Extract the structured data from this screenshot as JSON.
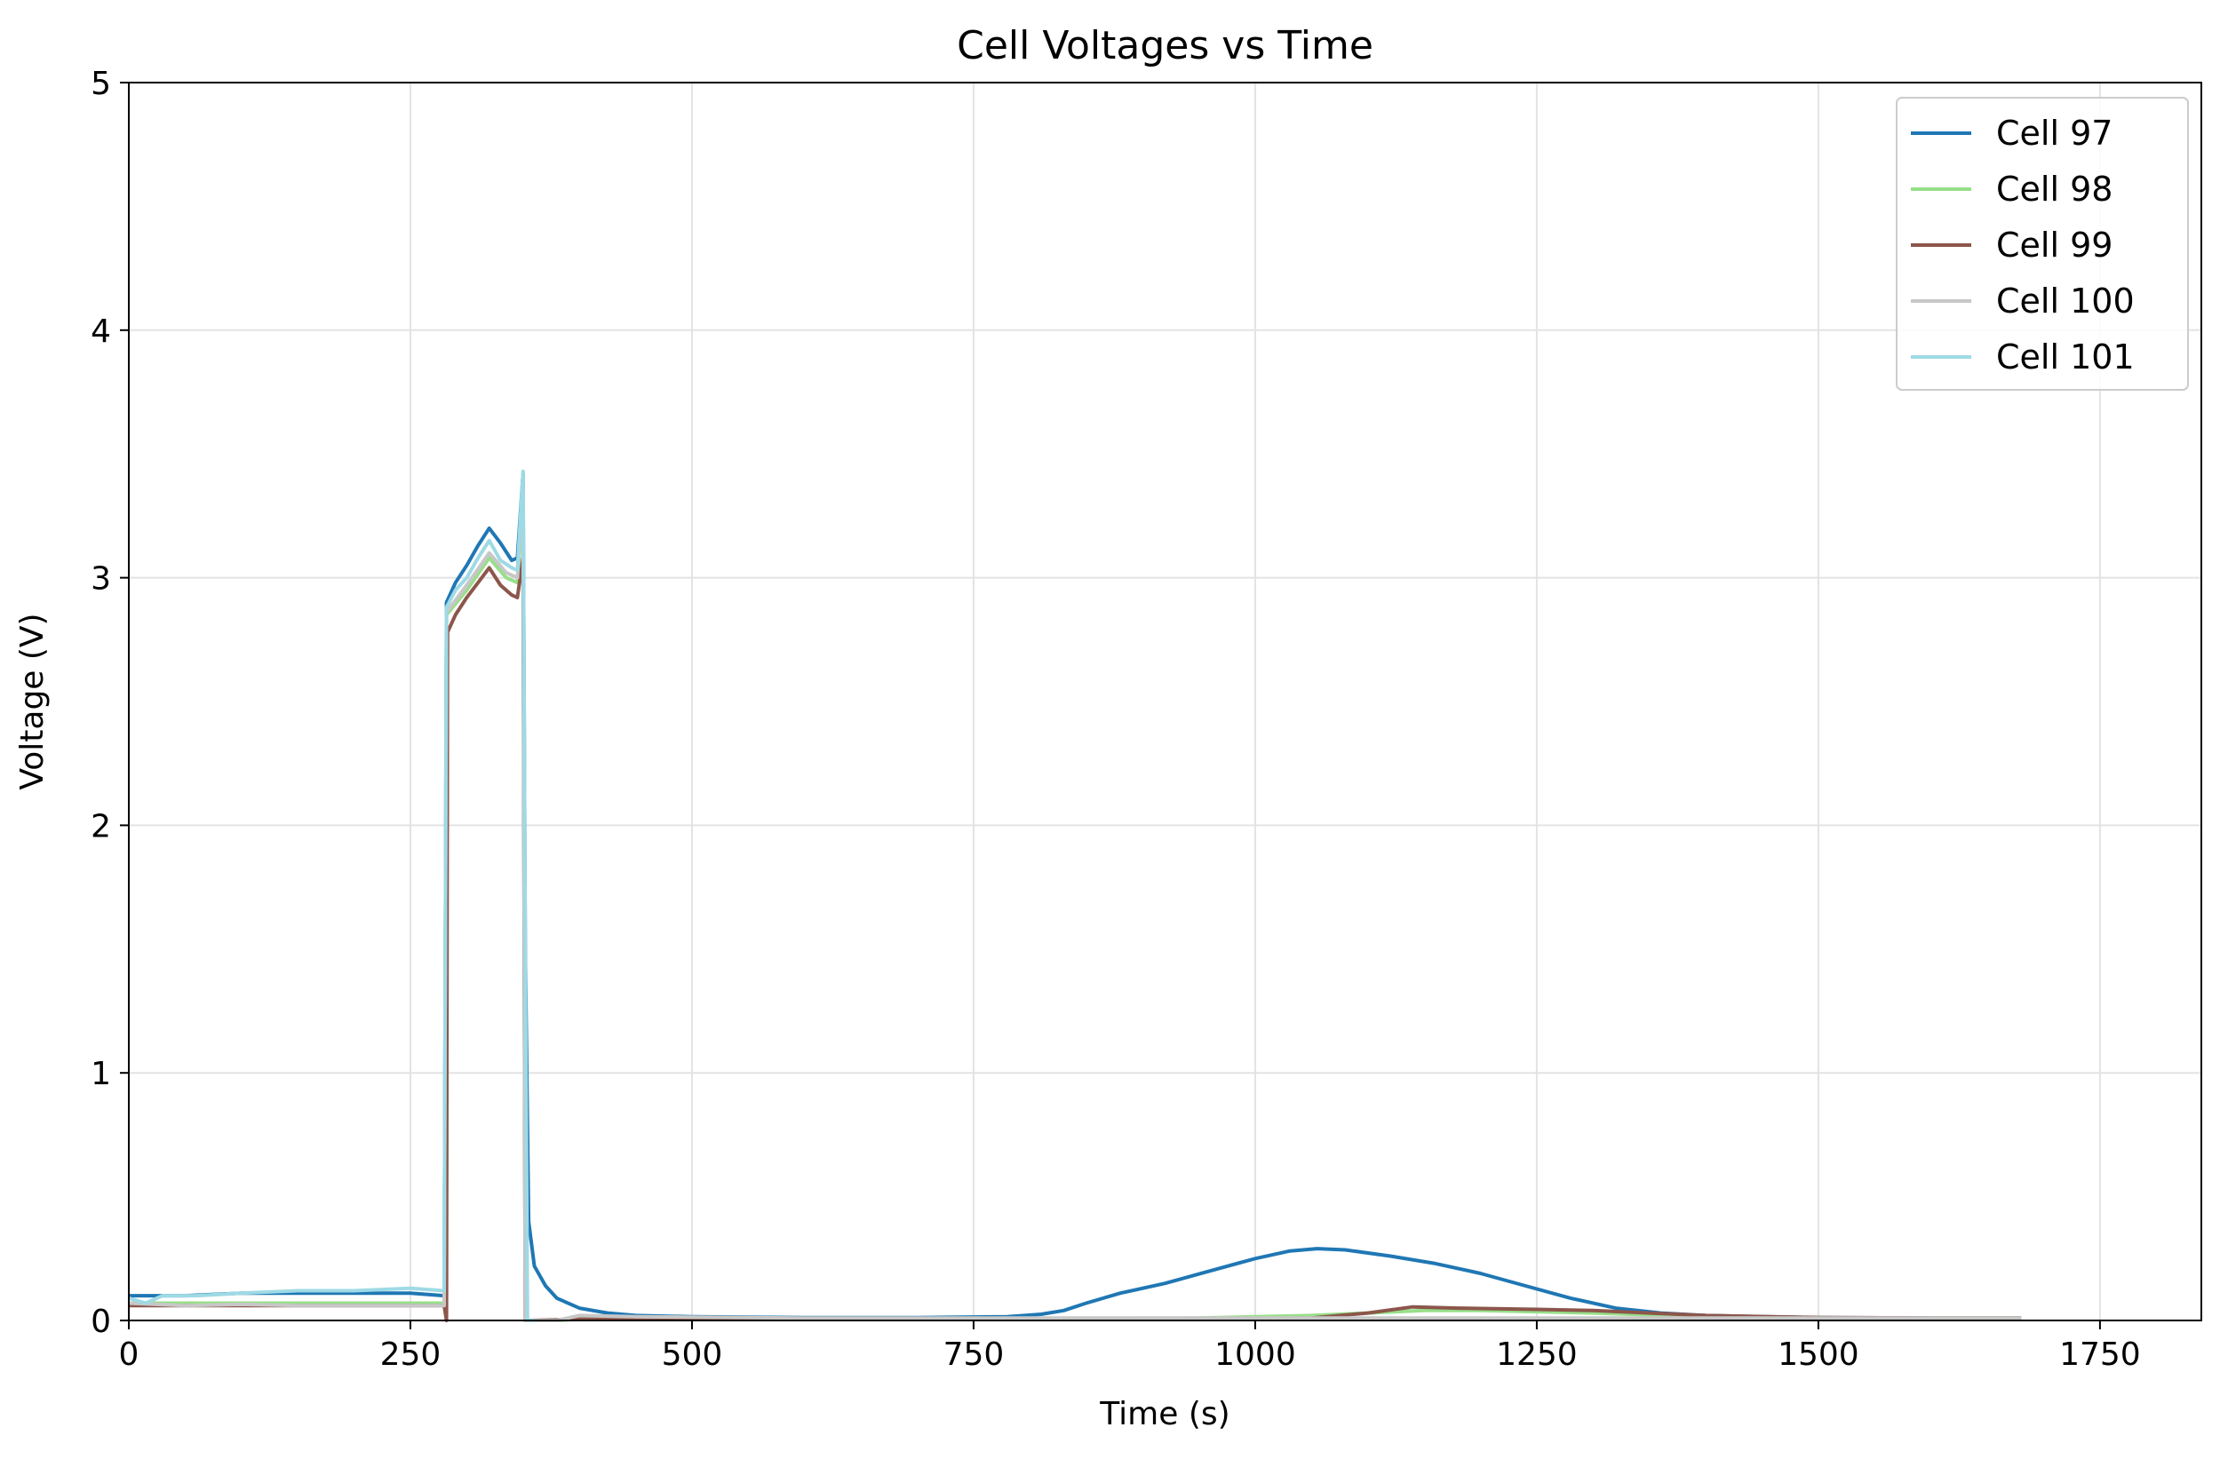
{
  "chart_data": {
    "type": "line",
    "title": "Cell Voltages vs Time",
    "xlabel": "Time (s)",
    "ylabel": "Voltage (V)",
    "xlim": [
      0,
      1840
    ],
    "ylim": [
      0,
      5
    ],
    "xticks": [
      0,
      250,
      500,
      750,
      1000,
      1250,
      1500,
      1750
    ],
    "yticks": [
      0,
      1,
      2,
      3,
      4,
      5
    ],
    "grid": true,
    "legend_position": "top-right",
    "series": [
      {
        "name": "Cell 97",
        "color": "#1f77b4",
        "points": [
          [
            0,
            0.1
          ],
          [
            50,
            0.1
          ],
          [
            100,
            0.11
          ],
          [
            150,
            0.11
          ],
          [
            200,
            0.11
          ],
          [
            250,
            0.11
          ],
          [
            280,
            0.1
          ],
          [
            282,
            2.9
          ],
          [
            290,
            2.98
          ],
          [
            300,
            3.05
          ],
          [
            310,
            3.13
          ],
          [
            320,
            3.2
          ],
          [
            330,
            3.14
          ],
          [
            340,
            3.07
          ],
          [
            345,
            3.08
          ],
          [
            350,
            3.42
          ],
          [
            352,
            1.5
          ],
          [
            355,
            0.4
          ],
          [
            360,
            0.22
          ],
          [
            370,
            0.14
          ],
          [
            380,
            0.09
          ],
          [
            400,
            0.05
          ],
          [
            425,
            0.03
          ],
          [
            450,
            0.02
          ],
          [
            500,
            0.015
          ],
          [
            600,
            0.012
          ],
          [
            700,
            0.012
          ],
          [
            780,
            0.015
          ],
          [
            810,
            0.025
          ],
          [
            830,
            0.04
          ],
          [
            850,
            0.07
          ],
          [
            880,
            0.11
          ],
          [
            920,
            0.15
          ],
          [
            960,
            0.2
          ],
          [
            1000,
            0.25
          ],
          [
            1030,
            0.28
          ],
          [
            1055,
            0.29
          ],
          [
            1080,
            0.285
          ],
          [
            1120,
            0.26
          ],
          [
            1160,
            0.23
          ],
          [
            1200,
            0.19
          ],
          [
            1240,
            0.14
          ],
          [
            1280,
            0.09
          ],
          [
            1320,
            0.05
          ],
          [
            1360,
            0.03
          ],
          [
            1400,
            0.02
          ],
          [
            1450,
            0.015
          ],
          [
            1500,
            0.012
          ],
          [
            1600,
            0.01
          ],
          [
            1680,
            0.01
          ]
        ]
      },
      {
        "name": "Cell 98",
        "color": "#98df8a",
        "points": [
          [
            0,
            0.07
          ],
          [
            100,
            0.07
          ],
          [
            200,
            0.07
          ],
          [
            280,
            0.07
          ],
          [
            282,
            2.85
          ],
          [
            300,
            2.95
          ],
          [
            320,
            3.08
          ],
          [
            335,
            3.0
          ],
          [
            345,
            2.98
          ],
          [
            350,
            3.3
          ],
          [
            352,
            0.0
          ],
          [
            380,
            0.0
          ],
          [
            400,
            0.005
          ],
          [
            600,
            0.008
          ],
          [
            800,
            0.008
          ],
          [
            950,
            0.01
          ],
          [
            1050,
            0.02
          ],
          [
            1100,
            0.03
          ],
          [
            1150,
            0.04
          ],
          [
            1200,
            0.04
          ],
          [
            1300,
            0.03
          ],
          [
            1400,
            0.015
          ],
          [
            1500,
            0.01
          ],
          [
            1600,
            0.01
          ],
          [
            1680,
            0.01
          ]
        ]
      },
      {
        "name": "Cell 99",
        "color": "#8c564b",
        "points": [
          [
            0,
            0.06
          ],
          [
            100,
            0.06
          ],
          [
            200,
            0.06
          ],
          [
            280,
            0.06
          ],
          [
            282,
            0.0
          ],
          [
            283,
            2.78
          ],
          [
            290,
            2.85
          ],
          [
            300,
            2.92
          ],
          [
            310,
            2.98
          ],
          [
            320,
            3.04
          ],
          [
            330,
            2.97
          ],
          [
            340,
            2.93
          ],
          [
            345,
            2.92
          ],
          [
            350,
            3.08
          ],
          [
            352,
            0.0
          ],
          [
            400,
            0.005
          ],
          [
            600,
            0.005
          ],
          [
            800,
            0.005
          ],
          [
            950,
            0.005
          ],
          [
            1050,
            0.01
          ],
          [
            1100,
            0.03
          ],
          [
            1140,
            0.055
          ],
          [
            1180,
            0.05
          ],
          [
            1250,
            0.045
          ],
          [
            1300,
            0.04
          ],
          [
            1350,
            0.03
          ],
          [
            1400,
            0.02
          ],
          [
            1500,
            0.012
          ],
          [
            1600,
            0.01
          ],
          [
            1680,
            0.01
          ]
        ]
      },
      {
        "name": "Cell 100",
        "color": "#c7c7c7",
        "points": [
          [
            0,
            0.07
          ],
          [
            50,
            0.06
          ],
          [
            100,
            0.065
          ],
          [
            150,
            0.06
          ],
          [
            200,
            0.06
          ],
          [
            250,
            0.06
          ],
          [
            280,
            0.06
          ],
          [
            282,
            2.86
          ],
          [
            300,
            2.97
          ],
          [
            320,
            3.1
          ],
          [
            335,
            3.02
          ],
          [
            345,
            3.0
          ],
          [
            350,
            3.35
          ],
          [
            352,
            0.0
          ],
          [
            380,
            0.0
          ],
          [
            400,
            0.02
          ],
          [
            450,
            0.015
          ],
          [
            600,
            0.01
          ],
          [
            800,
            0.01
          ],
          [
            1000,
            0.01
          ],
          [
            1200,
            0.01
          ],
          [
            1400,
            0.01
          ],
          [
            1680,
            0.01
          ]
        ]
      },
      {
        "name": "Cell 101",
        "color": "#9edae5",
        "points": [
          [
            0,
            0.09
          ],
          [
            15,
            0.07
          ],
          [
            30,
            0.1
          ],
          [
            60,
            0.1
          ],
          [
            100,
            0.11
          ],
          [
            150,
            0.12
          ],
          [
            200,
            0.12
          ],
          [
            250,
            0.13
          ],
          [
            280,
            0.12
          ],
          [
            282,
            2.88
          ],
          [
            290,
            2.95
          ],
          [
            300,
            3.0
          ],
          [
            310,
            3.08
          ],
          [
            320,
            3.15
          ],
          [
            330,
            3.07
          ],
          [
            340,
            3.04
          ],
          [
            345,
            3.03
          ],
          [
            350,
            3.43
          ],
          [
            352,
            1.5
          ],
          [
            354,
            0.0
          ],
          [
            360,
            0.0
          ]
        ]
      }
    ]
  }
}
